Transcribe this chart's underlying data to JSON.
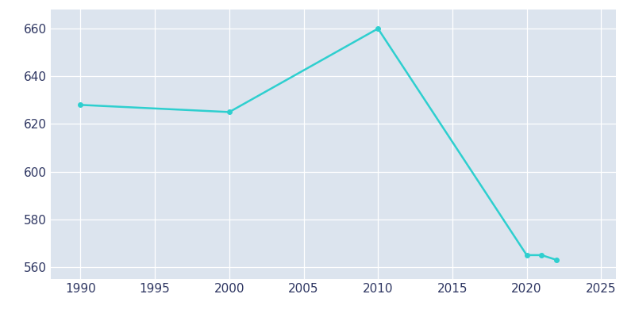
{
  "years": [
    1990,
    2000,
    2010,
    2020,
    2021,
    2022
  ],
  "population": [
    628,
    625,
    660,
    565,
    565,
    563
  ],
  "line_color": "#2ecfcf",
  "fig_bg_color": "#ffffff",
  "axes_bg_color": "#dce4ee",
  "grid_color": "#ffffff",
  "tick_label_color": "#2d3561",
  "xlim": [
    1988,
    2026
  ],
  "ylim": [
    555,
    668
  ],
  "yticks": [
    560,
    580,
    600,
    620,
    640,
    660
  ],
  "xticks": [
    1990,
    1995,
    2000,
    2005,
    2010,
    2015,
    2020,
    2025
  ],
  "linewidth": 1.8,
  "markersize": 4,
  "tick_fontsize": 11
}
